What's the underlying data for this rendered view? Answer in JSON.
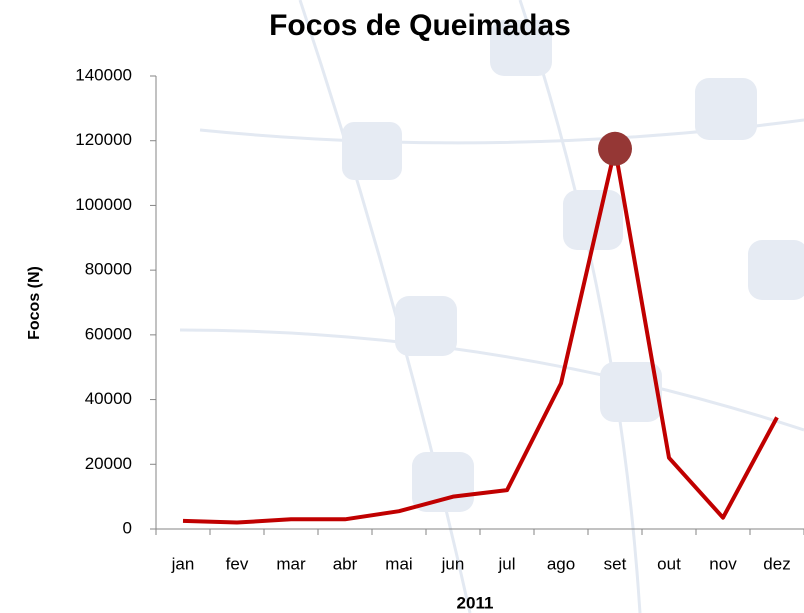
{
  "chart_data": {
    "type": "line",
    "title": "Focos de Queimadas",
    "x_label": "2011",
    "y_label": "Focos (N)",
    "categories": [
      "jan",
      "fev",
      "mar",
      "abr",
      "mai",
      "jun",
      "jul",
      "ago",
      "set",
      "out",
      "nov",
      "dez"
    ],
    "series": [
      {
        "name": "Focos",
        "color": "#c00000",
        "values": [
          2500,
          2000,
          3000,
          3000,
          5500,
          10000,
          12000,
          45000,
          117500,
          22000,
          3500,
          34500
        ]
      }
    ],
    "highlight": "set",
    "marker_color": "#953735",
    "ylim": [
      0,
      140000
    ],
    "yticks": [
      0,
      20000,
      40000,
      60000,
      80000,
      100000,
      120000,
      140000
    ]
  }
}
